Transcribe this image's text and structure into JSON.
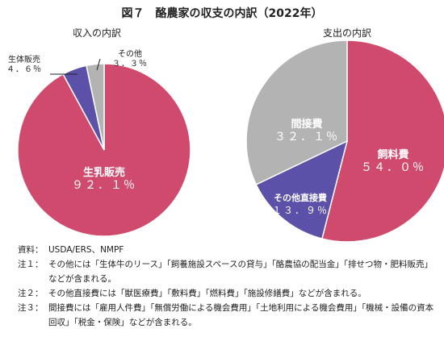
{
  "title": "図７　酪農家の収支の内訳（2022年）",
  "chart_data": [
    {
      "type": "pie",
      "title": "収入の内訳",
      "slices": [
        {
          "label": "生乳販売",
          "value": 92.1,
          "value_text": "９２．１％",
          "color": "#d04a6e"
        },
        {
          "label": "生体販売",
          "value": 4.6,
          "value_text": "４．６％",
          "color": "#5b51a8"
        },
        {
          "label": "その他",
          "value": 3.3,
          "value_text": "３．３％",
          "color": "#b3b3b3"
        }
      ]
    },
    {
      "type": "pie",
      "title": "支出の内訳",
      "slices": [
        {
          "label": "飼料費",
          "value": 54.0,
          "value_text": "５４．０％",
          "color": "#d04a6e"
        },
        {
          "label": "その他直接費",
          "value": 13.9,
          "value_text": "１３．９％",
          "color": "#5b51a8"
        },
        {
          "label": "間接費",
          "value": 32.1,
          "value_text": "３２．１％",
          "color": "#b3b3b3"
        }
      ]
    }
  ],
  "notes": [
    {
      "label": "資料：",
      "text": "USDA/ERS、NMPF"
    },
    {
      "label": "注１：",
      "text": "その他には「生体牛のリース」「飼養施設スペースの貸与」「酪農協の配当金」「排せつ物・肥料販売」などが含まれる。"
    },
    {
      "label": "注２：",
      "text": "その他直接費には「獣医療費」「敷料費」「燃料費」「施設修繕費」などが含まれる。"
    },
    {
      "label": "注３：",
      "text": "間接費には「雇用人件費」「無償労働による機会費用」「土地利用による機会費用」「機械・設備の資本回収」「税金・保険」などが含まれる。"
    }
  ]
}
